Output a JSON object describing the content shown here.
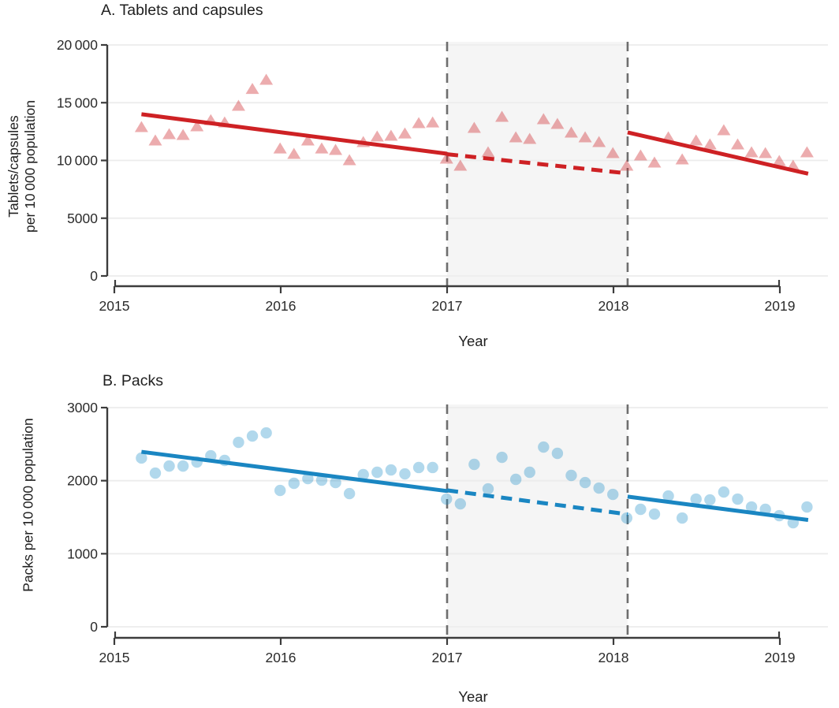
{
  "chart_data": [
    {
      "panel": "A",
      "type": "scatter",
      "title": "A. Tablets and capsules",
      "xlabel": "Year",
      "ylabel": "Tablets/capsules\nper 10 000 population",
      "marker": "triangle",
      "legend": false,
      "grid": true,
      "colors": {
        "point": "rgba(204,37,41,0.38)",
        "trend": "#ce2124",
        "reference": "#6e6e6e",
        "axis": "#3c3c3c",
        "grid": "#ececec",
        "text": "#2b2b2b"
      },
      "xlim": [
        2014.95,
        2019.3
      ],
      "ylim": [
        0,
        20000
      ],
      "yticks": [
        {
          "value": 0,
          "label": "0"
        },
        {
          "value": 5000,
          "label": "5000"
        },
        {
          "value": 10000,
          "label": "10 000"
        },
        {
          "value": 15000,
          "label": "15 000"
        },
        {
          "value": 20000,
          "label": "20 000"
        }
      ],
      "xticks": [
        {
          "value": 2015,
          "label": "2015"
        },
        {
          "value": 2016,
          "label": "2016"
        },
        {
          "value": 2017,
          "label": "2017"
        },
        {
          "value": 2018,
          "label": "2018"
        },
        {
          "value": 2019,
          "label": "2019"
        }
      ],
      "x_start": 2015.163,
      "x_step_years": 0.0833333,
      "values": [
        12900,
        11740,
        12290,
        12220,
        12970,
        13500,
        13300,
        14740,
        16200,
        17000,
        11050,
        10580,
        11740,
        11050,
        10920,
        10030,
        11600,
        12080,
        12150,
        12350,
        13240,
        13300,
        10170,
        9560,
        12830,
        10720,
        13790,
        12010,
        11880,
        13580,
        13170,
        12420,
        12010,
        11600,
        10650,
        9560,
        10440,
        9830,
        12010,
        10100,
        11740,
        11400,
        12630,
        11400,
        10720,
        10650,
        9970,
        9560,
        10720
      ],
      "trend_segments": [
        {
          "style": "solid",
          "from": [
            2015.163,
            14000
          ],
          "to": [
            2017.0,
            10580
          ]
        },
        {
          "style": "dashed",
          "from": [
            2017.0,
            10540
          ],
          "to": [
            2018.085,
            8880
          ]
        },
        {
          "style": "solid",
          "from": [
            2018.085,
            12430
          ],
          "to": [
            2019.17,
            8850
          ]
        }
      ],
      "reference_lines": [
        2017.0,
        2018.085
      ],
      "shaded_region": {
        "from": 2017.0,
        "to": 2018.085,
        "color": "#f5f5f5"
      }
    },
    {
      "panel": "B",
      "type": "scatter",
      "title": "B. Packs",
      "xlabel": "Year",
      "ylabel": "Packs per 10 000 population",
      "marker": "circle",
      "legend": false,
      "grid": true,
      "colors": {
        "point": "rgba(31,142,201,0.35)",
        "trend": "#1a86c2",
        "reference": "#6e6e6e",
        "axis": "#3c3c3c",
        "grid": "#ececec",
        "text": "#2b2b2b"
      },
      "xlim": [
        2014.95,
        2019.3
      ],
      "ylim": [
        0,
        3000
      ],
      "yticks": [
        {
          "value": 0,
          "label": "0"
        },
        {
          "value": 1000,
          "label": "1000"
        },
        {
          "value": 2000,
          "label": "2000"
        },
        {
          "value": 3000,
          "label": "3000"
        }
      ],
      "xticks": [
        {
          "value": 2015,
          "label": "2015"
        },
        {
          "value": 2016,
          "label": "2016"
        },
        {
          "value": 2017,
          "label": "2017"
        },
        {
          "value": 2018,
          "label": "2018"
        },
        {
          "value": 2019,
          "label": "2019"
        }
      ],
      "x_start": 2015.163,
      "x_step_years": 0.0833333,
      "values": [
        2310,
        2104,
        2200,
        2200,
        2255,
        2341,
        2277,
        2525,
        2611,
        2654,
        1866,
        1964,
        2028,
        2007,
        1974,
        1823,
        2083,
        2115,
        2147,
        2093,
        2180,
        2180,
        1748,
        1683,
        2223,
        1888,
        2320,
        2018,
        2115,
        2460,
        2374,
        2072,
        1974,
        1899,
        1812,
        1489,
        1608,
        1543,
        1791,
        1489,
        1748,
        1737,
        1845,
        1748,
        1640,
        1608,
        1521,
        1424,
        1640
      ],
      "trend_segments": [
        {
          "style": "solid",
          "from": [
            2015.163,
            2395
          ],
          "to": [
            2017.0,
            1858
          ]
        },
        {
          "style": "dashed",
          "from": [
            2017.0,
            1868
          ],
          "to": [
            2018.085,
            1540
          ]
        },
        {
          "style": "solid",
          "from": [
            2018.085,
            1782
          ],
          "to": [
            2019.17,
            1462
          ]
        }
      ],
      "reference_lines": [
        2017.0,
        2018.085
      ],
      "shaded_region": {
        "from": 2017.0,
        "to": 2018.085,
        "color": "#f5f5f5"
      }
    }
  ]
}
